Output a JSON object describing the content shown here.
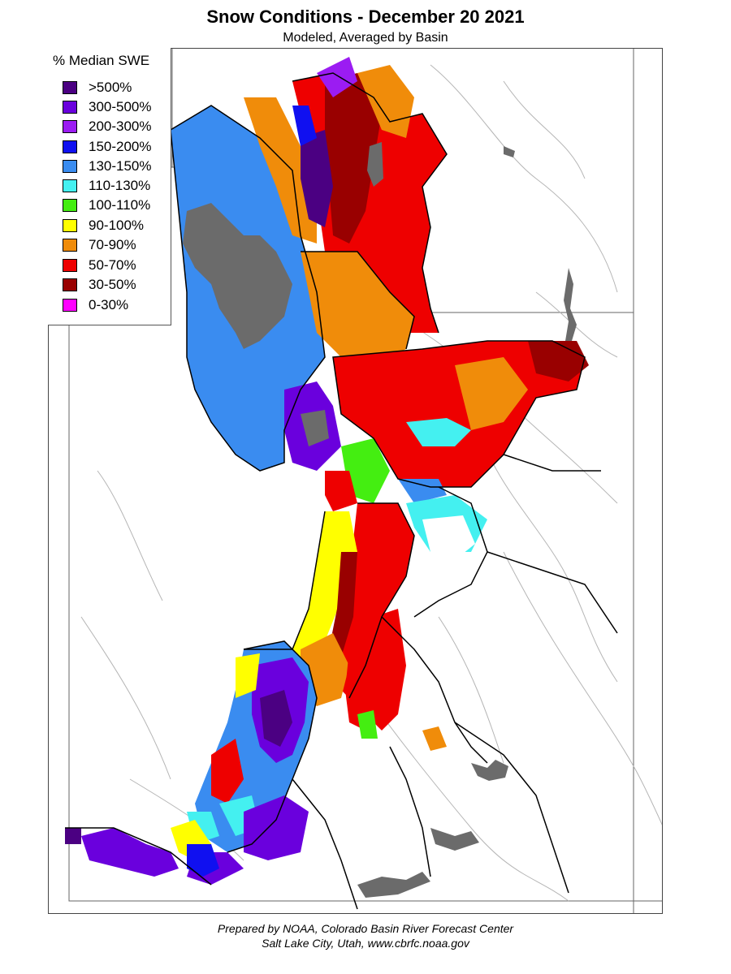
{
  "title": "Snow Conditions - December 20 2021",
  "subtitle": "Modeled, Averaged by Basin",
  "legend": {
    "title": "% Median SWE",
    "items": [
      {
        "label": ">500%",
        "color": "#4b0082"
      },
      {
        "label": "300-500%",
        "color": "#6a00dd"
      },
      {
        "label": "200-300%",
        "color": "#9b1cf2"
      },
      {
        "label": "150-200%",
        "color": "#1010f0"
      },
      {
        "label": "130-150%",
        "color": "#3a8cf0"
      },
      {
        "label": "110-130%",
        "color": "#44f0f0"
      },
      {
        "label": "100-110%",
        "color": "#44ee11"
      },
      {
        "label": "90-100%",
        "color": "#ffff00"
      },
      {
        "label": "70-90%",
        "color": "#f08c0a"
      },
      {
        "label": "50-70%",
        "color": "#ee0000"
      },
      {
        "label": "30-50%",
        "color": "#990000"
      },
      {
        "label": "0-30%",
        "color": "#ff00ff"
      }
    ]
  },
  "colors": {
    "water": "#6b6b6b",
    "river": "#b0b0b0",
    "basin_border": "#000000",
    "state_border": "#555555",
    "no_snow": "#ffffff"
  },
  "credit": {
    "line1": "Prepared by NOAA, Colorado Basin River Forecast Center",
    "line2": "Salt Lake City, Utah, www.cbrfc.noaa.gov"
  }
}
